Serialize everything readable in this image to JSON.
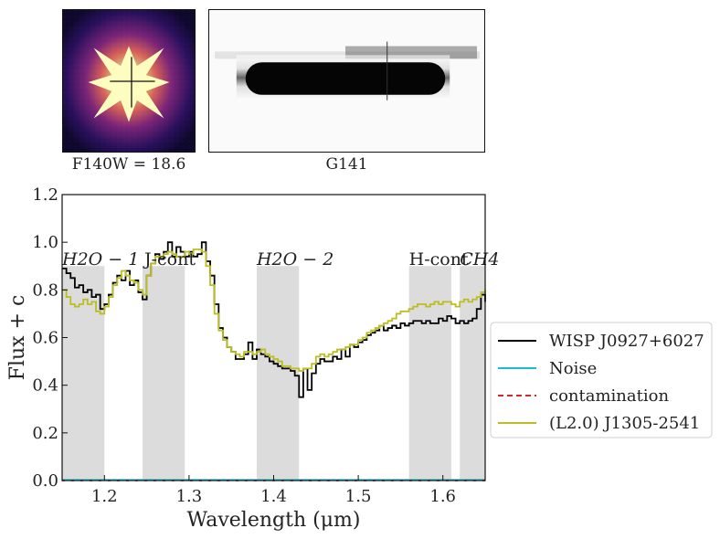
{
  "panels": {
    "direct_caption": "F140W = 18.6",
    "grism_caption": "G141"
  },
  "colors": {
    "object": "#000000",
    "noise": "#17becf",
    "contamination": "#d62728",
    "template": "#bcbd22",
    "band": "#dcdcdc"
  },
  "chart_data": {
    "type": "line",
    "xlabel": "Wavelength (μm)",
    "ylabel": "Flux + c",
    "xlim": [
      1.15,
      1.65
    ],
    "ylim": [
      0.0,
      1.2
    ],
    "xticks": [
      1.2,
      1.3,
      1.4,
      1.5,
      1.6
    ],
    "xtick_labels": [
      "1.2",
      "1.3",
      "1.4",
      "1.5",
      "1.6"
    ],
    "yticks": [
      0.0,
      0.2,
      0.4,
      0.6,
      0.8,
      1.0,
      1.2
    ],
    "ytick_labels": [
      "0.0",
      "0.2",
      "0.4",
      "0.6",
      "0.8",
      "1.0",
      "1.2"
    ],
    "grid": false,
    "legend_position": "right",
    "bands": [
      {
        "label": "H2O − 1",
        "x0": 1.15,
        "x1": 1.2,
        "ytop": 0.9
      },
      {
        "label": "J-cont",
        "x0": 1.245,
        "x1": 1.295,
        "ytop": 0.9
      },
      {
        "label": "H2O − 2",
        "x0": 1.38,
        "x1": 1.43,
        "ytop": 0.9
      },
      {
        "label": "H-cont",
        "x0": 1.56,
        "x1": 1.61,
        "ytop": 0.9
      },
      {
        "label": "CH4",
        "x0": 1.62,
        "x1": 1.65,
        "ytop": 0.9
      }
    ],
    "series": [
      {
        "name": "WISP  J0927+6027",
        "style": "steps",
        "x": [
          1.15,
          1.155,
          1.16,
          1.165,
          1.17,
          1.175,
          1.18,
          1.185,
          1.19,
          1.195,
          1.2,
          1.205,
          1.21,
          1.215,
          1.22,
          1.225,
          1.23,
          1.235,
          1.24,
          1.245,
          1.25,
          1.255,
          1.26,
          1.265,
          1.27,
          1.275,
          1.28,
          1.285,
          1.29,
          1.295,
          1.3,
          1.305,
          1.31,
          1.315,
          1.32,
          1.325,
          1.33,
          1.335,
          1.34,
          1.345,
          1.35,
          1.355,
          1.36,
          1.365,
          1.37,
          1.375,
          1.38,
          1.385,
          1.39,
          1.395,
          1.4,
          1.405,
          1.41,
          1.415,
          1.42,
          1.425,
          1.43,
          1.435,
          1.44,
          1.445,
          1.45,
          1.455,
          1.46,
          1.465,
          1.47,
          1.475,
          1.48,
          1.485,
          1.49,
          1.495,
          1.5,
          1.505,
          1.51,
          1.515,
          1.52,
          1.525,
          1.53,
          1.535,
          1.54,
          1.545,
          1.55,
          1.555,
          1.56,
          1.565,
          1.57,
          1.575,
          1.58,
          1.585,
          1.59,
          1.595,
          1.6,
          1.605,
          1.61,
          1.615,
          1.62,
          1.625,
          1.63,
          1.635,
          1.64,
          1.645,
          1.65
        ],
        "y": [
          0.89,
          0.87,
          0.85,
          0.81,
          0.82,
          0.79,
          0.8,
          0.77,
          0.78,
          0.72,
          0.74,
          0.78,
          0.83,
          0.86,
          0.84,
          0.88,
          0.82,
          0.84,
          0.79,
          0.76,
          0.86,
          0.91,
          0.95,
          0.93,
          0.96,
          1.0,
          0.94,
          0.98,
          0.96,
          0.94,
          0.96,
          0.94,
          0.95,
          1.0,
          0.92,
          0.86,
          0.74,
          0.64,
          0.6,
          0.56,
          0.54,
          0.51,
          0.51,
          0.53,
          0.58,
          0.51,
          0.55,
          0.53,
          0.52,
          0.5,
          0.49,
          0.48,
          0.47,
          0.47,
          0.46,
          0.44,
          0.35,
          0.47,
          0.38,
          0.45,
          0.49,
          0.51,
          0.5,
          0.5,
          0.52,
          0.51,
          0.55,
          0.52,
          0.57,
          0.56,
          0.58,
          0.59,
          0.61,
          0.62,
          0.63,
          0.65,
          0.63,
          0.64,
          0.65,
          0.64,
          0.66,
          0.65,
          0.66,
          0.67,
          0.67,
          0.66,
          0.67,
          0.66,
          0.66,
          0.68,
          0.67,
          0.69,
          0.68,
          0.66,
          0.67,
          0.66,
          0.67,
          0.68,
          0.72,
          0.78,
          0.75
        ]
      },
      {
        "name": "Noise",
        "style": "steps",
        "x": [
          1.15,
          1.65
        ],
        "y": [
          0.003,
          0.003
        ]
      },
      {
        "name": "contamination",
        "style": "dashed",
        "x": [
          1.15,
          1.65
        ],
        "y": [
          0.0,
          0.0
        ]
      },
      {
        "name": "(L2.0) J1305-2541",
        "style": "steps",
        "x": [
          1.15,
          1.155,
          1.16,
          1.165,
          1.17,
          1.175,
          1.18,
          1.185,
          1.19,
          1.195,
          1.2,
          1.205,
          1.21,
          1.215,
          1.22,
          1.225,
          1.23,
          1.235,
          1.24,
          1.245,
          1.25,
          1.255,
          1.26,
          1.265,
          1.27,
          1.275,
          1.28,
          1.285,
          1.29,
          1.295,
          1.3,
          1.305,
          1.31,
          1.315,
          1.32,
          1.325,
          1.33,
          1.335,
          1.34,
          1.345,
          1.35,
          1.355,
          1.36,
          1.365,
          1.37,
          1.375,
          1.38,
          1.385,
          1.39,
          1.395,
          1.4,
          1.405,
          1.41,
          1.415,
          1.42,
          1.425,
          1.43,
          1.435,
          1.44,
          1.445,
          1.45,
          1.455,
          1.46,
          1.465,
          1.47,
          1.475,
          1.48,
          1.485,
          1.49,
          1.495,
          1.5,
          1.505,
          1.51,
          1.515,
          1.52,
          1.525,
          1.53,
          1.535,
          1.54,
          1.545,
          1.55,
          1.555,
          1.56,
          1.565,
          1.57,
          1.575,
          1.58,
          1.585,
          1.59,
          1.595,
          1.6,
          1.605,
          1.61,
          1.615,
          1.62,
          1.625,
          1.63,
          1.635,
          1.64,
          1.645,
          1.65
        ],
        "y": [
          0.8,
          0.77,
          0.74,
          0.73,
          0.74,
          0.76,
          0.74,
          0.75,
          0.71,
          0.7,
          0.73,
          0.77,
          0.82,
          0.85,
          0.88,
          0.86,
          0.84,
          0.83,
          0.8,
          0.78,
          0.86,
          0.91,
          0.94,
          0.94,
          0.95,
          0.96,
          0.95,
          0.94,
          0.94,
          0.96,
          0.95,
          0.97,
          0.97,
          0.96,
          0.9,
          0.82,
          0.7,
          0.63,
          0.59,
          0.56,
          0.54,
          0.53,
          0.52,
          0.54,
          0.54,
          0.53,
          0.54,
          0.55,
          0.53,
          0.52,
          0.51,
          0.5,
          0.48,
          0.48,
          0.47,
          0.47,
          0.46,
          0.47,
          0.47,
          0.49,
          0.52,
          0.53,
          0.52,
          0.53,
          0.54,
          0.55,
          0.55,
          0.56,
          0.57,
          0.57,
          0.59,
          0.6,
          0.62,
          0.63,
          0.64,
          0.65,
          0.66,
          0.67,
          0.68,
          0.7,
          0.71,
          0.71,
          0.72,
          0.73,
          0.74,
          0.74,
          0.73,
          0.74,
          0.75,
          0.74,
          0.75,
          0.75,
          0.74,
          0.73,
          0.75,
          0.76,
          0.75,
          0.76,
          0.77,
          0.79,
          0.8
        ]
      }
    ]
  }
}
